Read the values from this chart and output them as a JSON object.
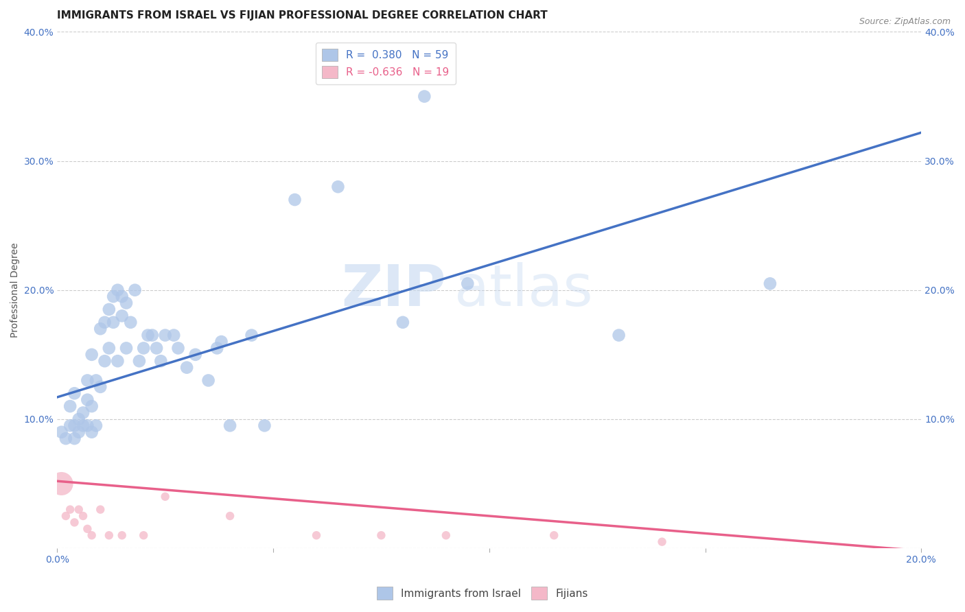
{
  "title": "IMMIGRANTS FROM ISRAEL VS FIJIAN PROFESSIONAL DEGREE CORRELATION CHART",
  "source": "Source: ZipAtlas.com",
  "ylabel": "Professional Degree",
  "xlim": [
    0.0,
    0.2
  ],
  "ylim": [
    0.0,
    0.4
  ],
  "legend1_r": "0.380",
  "legend1_n": "59",
  "legend2_r": "-0.636",
  "legend2_n": "19",
  "blue_color": "#aec6e8",
  "pink_color": "#f4b8c8",
  "blue_line_color": "#4472C4",
  "pink_line_color": "#e8608a",
  "watermark_zip": "ZIP",
  "watermark_atlas": "atlas",
  "grid_color": "#cccccc",
  "background_color": "#ffffff",
  "title_fontsize": 11,
  "axis_label_fontsize": 10,
  "tick_fontsize": 10,
  "legend_fontsize": 11,
  "blue_x": [
    0.001,
    0.002,
    0.003,
    0.003,
    0.004,
    0.004,
    0.004,
    0.005,
    0.005,
    0.006,
    0.006,
    0.007,
    0.007,
    0.007,
    0.008,
    0.008,
    0.008,
    0.009,
    0.009,
    0.01,
    0.01,
    0.011,
    0.011,
    0.012,
    0.012,
    0.013,
    0.013,
    0.014,
    0.014,
    0.015,
    0.015,
    0.016,
    0.016,
    0.017,
    0.018,
    0.019,
    0.02,
    0.021,
    0.022,
    0.023,
    0.024,
    0.025,
    0.027,
    0.028,
    0.03,
    0.032,
    0.035,
    0.037,
    0.038,
    0.04,
    0.045,
    0.048,
    0.055,
    0.065,
    0.08,
    0.085,
    0.095,
    0.13,
    0.165
  ],
  "blue_y": [
    0.09,
    0.085,
    0.11,
    0.095,
    0.085,
    0.095,
    0.12,
    0.09,
    0.1,
    0.095,
    0.105,
    0.095,
    0.115,
    0.13,
    0.09,
    0.11,
    0.15,
    0.095,
    0.13,
    0.125,
    0.17,
    0.175,
    0.145,
    0.185,
    0.155,
    0.175,
    0.195,
    0.2,
    0.145,
    0.18,
    0.195,
    0.155,
    0.19,
    0.175,
    0.2,
    0.145,
    0.155,
    0.165,
    0.165,
    0.155,
    0.145,
    0.165,
    0.165,
    0.155,
    0.14,
    0.15,
    0.13,
    0.155,
    0.16,
    0.095,
    0.165,
    0.095,
    0.27,
    0.28,
    0.175,
    0.35,
    0.205,
    0.165,
    0.205
  ],
  "pink_x": [
    0.001,
    0.002,
    0.003,
    0.004,
    0.005,
    0.006,
    0.007,
    0.008,
    0.01,
    0.012,
    0.015,
    0.02,
    0.025,
    0.04,
    0.06,
    0.075,
    0.09,
    0.115,
    0.14
  ],
  "pink_y": [
    0.05,
    0.025,
    0.03,
    0.02,
    0.03,
    0.025,
    0.015,
    0.01,
    0.03,
    0.01,
    0.01,
    0.01,
    0.04,
    0.025,
    0.01,
    0.01,
    0.01,
    0.01,
    0.005
  ],
  "pink_sizes": [
    600,
    80,
    80,
    80,
    80,
    80,
    80,
    80,
    80,
    80,
    80,
    80,
    80,
    80,
    80,
    80,
    80,
    80,
    80
  ],
  "blue_line_x0": 0.0,
  "blue_line_y0": 0.117,
  "blue_line_x1": 0.2,
  "blue_line_y1": 0.322,
  "pink_line_x0": 0.0,
  "pink_line_y0": 0.052,
  "pink_line_x1": 0.2,
  "pink_line_y1": -0.002
}
